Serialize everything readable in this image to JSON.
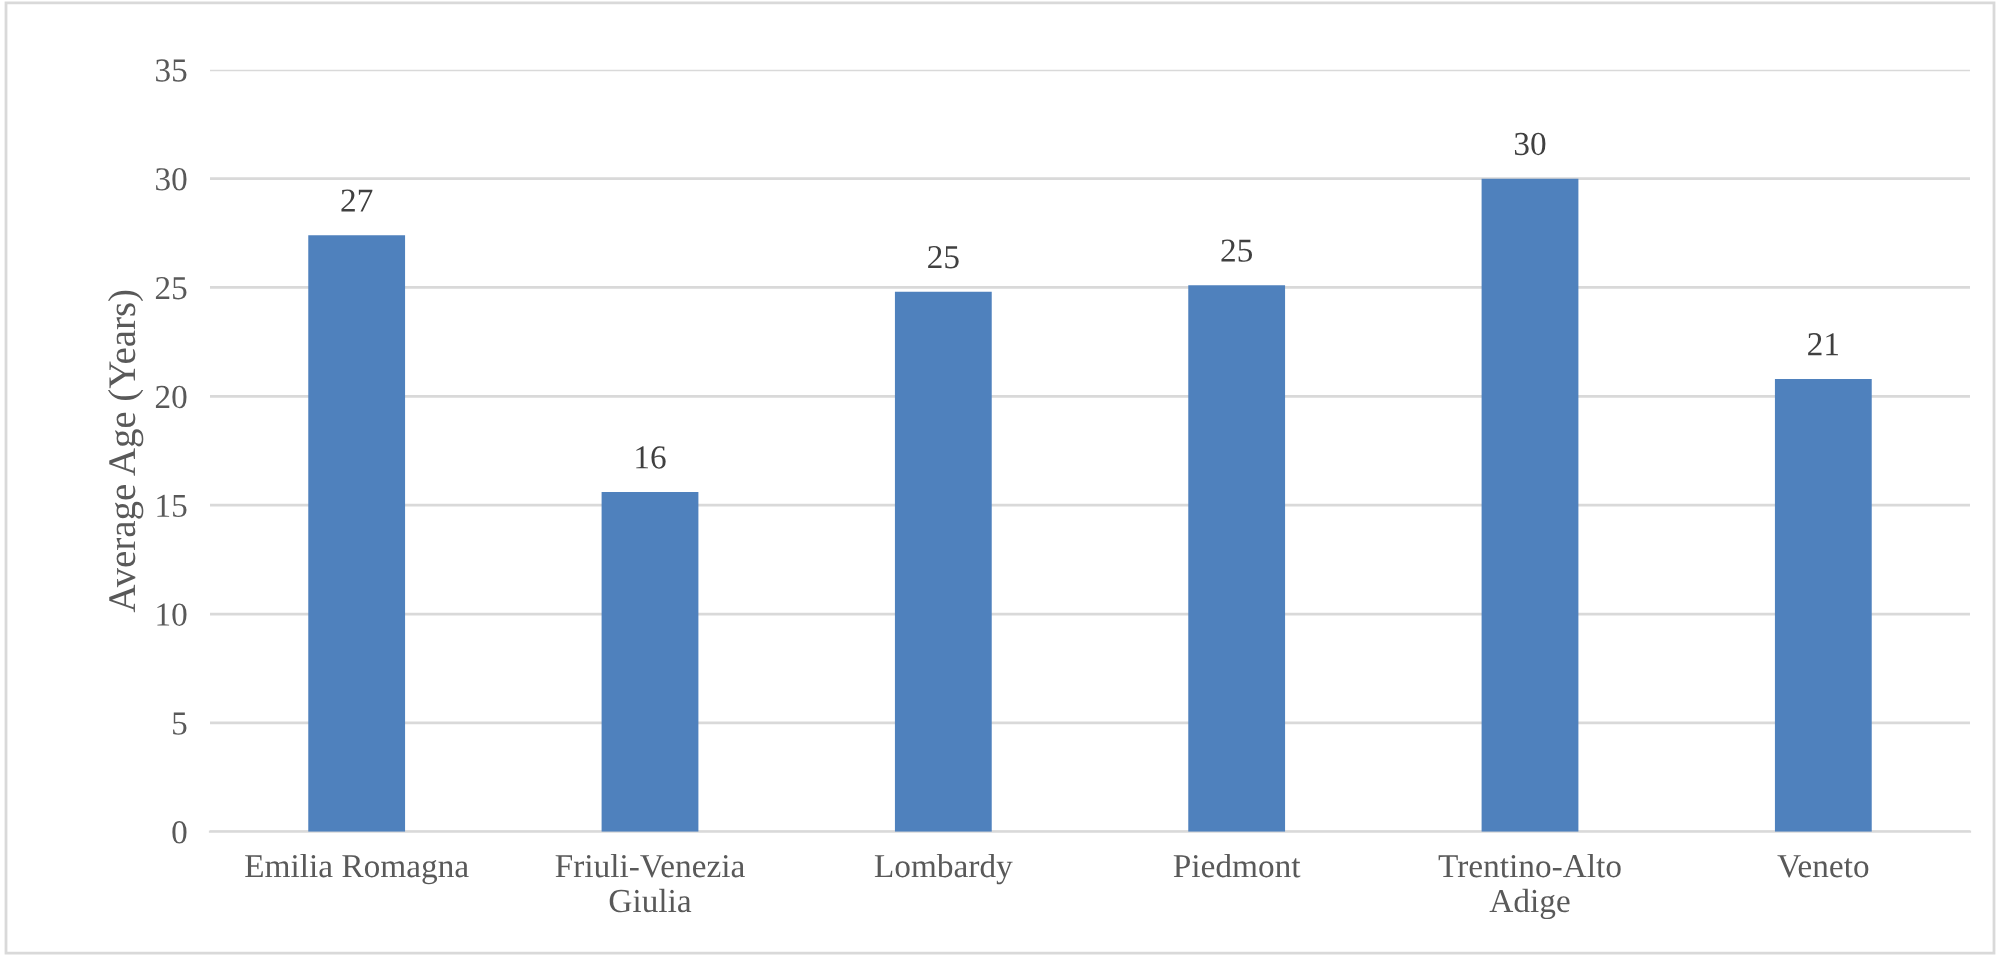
{
  "chart_data": {
    "type": "bar",
    "ylabel": "Average Age (Years)",
    "categories": [
      "Emilia Romagna",
      "Friuli-Venezia Giulia",
      "Lombardy",
      "Piedmont",
      "Trentino-Alto Adige",
      "Veneto"
    ],
    "values": [
      27.4,
      15.6,
      24.8,
      25.1,
      30.0,
      20.8
    ],
    "value_labels": [
      "27",
      "16",
      "25",
      "25",
      "30",
      "21"
    ],
    "color": "#4f81bd",
    "ylim": [
      0,
      35
    ],
    "yticks": [
      0,
      5,
      10,
      15,
      20,
      25,
      30,
      35
    ],
    "grid": "y",
    "legend": false
  }
}
